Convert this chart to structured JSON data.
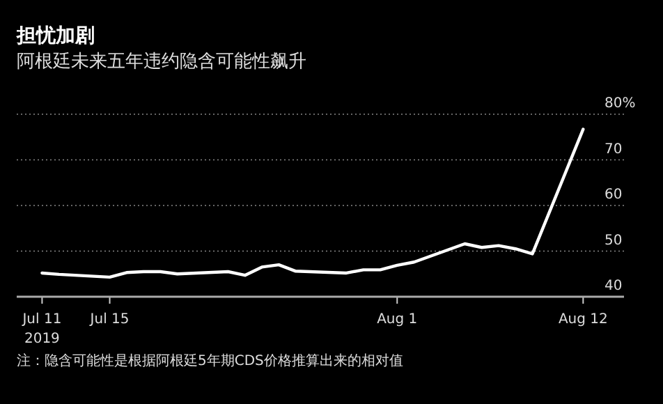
{
  "chart_data": {
    "type": "line",
    "title": "担忧加剧",
    "subtitle": "阿根廷未来五年违约隐含可能性飙升",
    "annotations": [
      "注：隐含可能性是根据阿根廷5年期CDS价格推算出来的相对值"
    ],
    "x": [
      "2019-07-11",
      "2019-07-12",
      "2019-07-15",
      "2019-07-16",
      "2019-07-17",
      "2019-07-18",
      "2019-07-19",
      "2019-07-22",
      "2019-07-23",
      "2019-07-24",
      "2019-07-25",
      "2019-07-26",
      "2019-07-29",
      "2019-07-30",
      "2019-07-31",
      "2019-08-01",
      "2019-08-02",
      "2019-08-05",
      "2019-08-06",
      "2019-08-07",
      "2019-08-08",
      "2019-08-09",
      "2019-08-12"
    ],
    "series": [
      {
        "color": "#ffffff",
        "values": [
          45.2,
          44.9,
          44.3,
          45.3,
          45.5,
          45.5,
          45.0,
          45.5,
          44.7,
          46.5,
          47.0,
          45.6,
          45.2,
          45.9,
          45.9,
          46.9,
          47.6,
          51.6,
          50.8,
          51.2,
          50.5,
          49.4,
          76.7
        ]
      }
    ],
    "xlim": [
      "2019-07-09T12:00",
      "2019-08-14T10:00"
    ],
    "xticks": [
      {
        "value": "2019-07-11",
        "label": "Jul 11\n2019"
      },
      {
        "value": "2019-07-15",
        "label": "Jul 15"
      },
      {
        "value": "2019-08-01",
        "label": "Aug 1"
      },
      {
        "value": "2019-08-12",
        "label": "Aug 12"
      }
    ],
    "ylim": [
      40,
      80
    ],
    "yticks": [
      40,
      50,
      60,
      70,
      {
        "value": 80,
        "label": "80%"
      }
    ],
    "grid": "y",
    "marker": "none",
    "line_style": "solid"
  }
}
